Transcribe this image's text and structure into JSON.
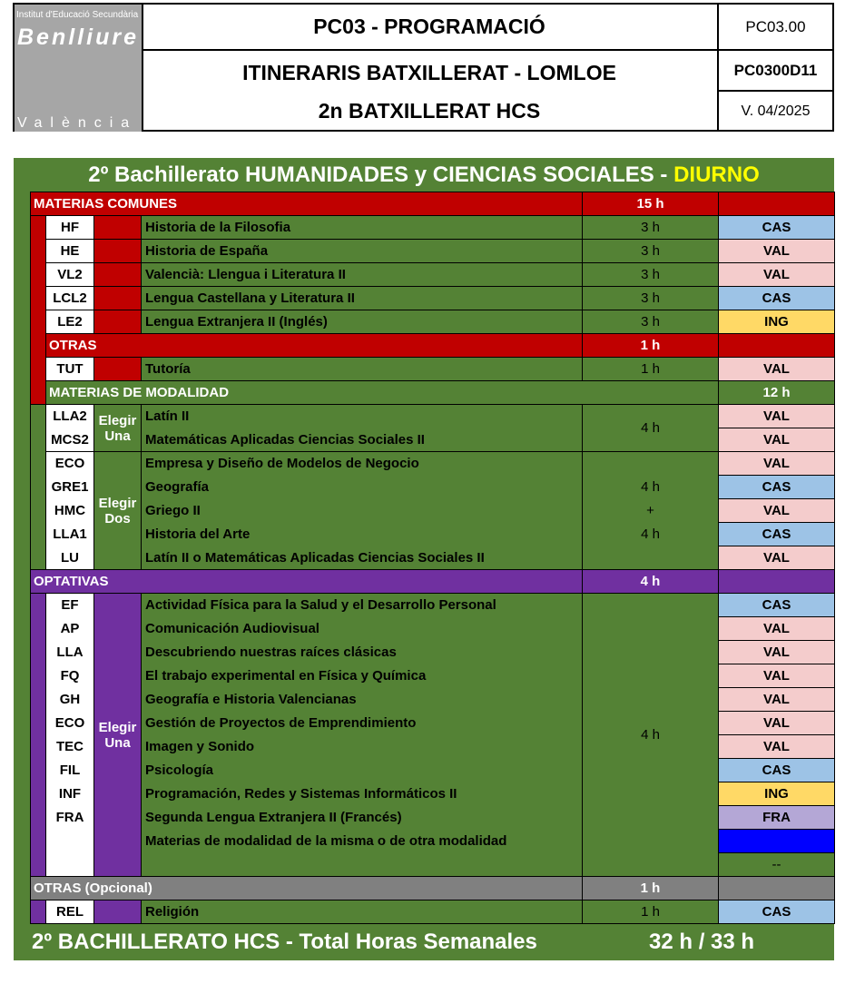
{
  "header": {
    "logo": {
      "line1": "Institut d'Educació Secundària",
      "line2": "Benlliure",
      "line3": "València"
    },
    "code": "PC03 - PROGRAMACIÓ",
    "title1": "ITINERARIS BATXILLERAT - LOMLOE",
    "title2": "2n BATXILLERAT HCS",
    "ref": "PC03.00",
    "doc": "PC0300D11",
    "version": "V. 04/2025"
  },
  "title": {
    "main": "2º Bachillerato HUMANIDADES y CIENCIAS SOCIALES  - ",
    "shift": "DIURNO"
  },
  "colors": {
    "comunes": "#C00000",
    "modalidad": "#548235",
    "optativas": "#7030A0",
    "opcional": "#808080",
    "CAS": "#9DC3E6",
    "VAL": "#F4CCCC",
    "ING": "#FFD966",
    "FRA": "#B4A7D6",
    "blue": "#0000FF"
  },
  "comunes": {
    "label": "MATERIAS COMUNES",
    "hours": "15 h",
    "rows": [
      {
        "code": "HF",
        "name": "Historia de la Filosofia",
        "hours": "3 h",
        "lang": "CAS"
      },
      {
        "code": "HE",
        "name": "Historia de España",
        "hours": "3 h",
        "lang": "VAL"
      },
      {
        "code": "VL2",
        "name": "Valencià: Llengua i Literatura II",
        "hours": "3 h",
        "lang": "VAL"
      },
      {
        "code": "LCL2",
        "name": "Lengua Castellana y Literatura II",
        "hours": "3 h",
        "lang": "CAS"
      },
      {
        "code": "LE2",
        "name": "Lengua Extranjera II (Inglés)",
        "hours": "3 h",
        "lang": "ING"
      }
    ]
  },
  "otras": {
    "label": "OTRAS",
    "hours": "1 h",
    "rows": [
      {
        "code": "TUT",
        "name": "Tutoría",
        "hours": "1 h",
        "lang": "VAL"
      }
    ]
  },
  "modalidad": {
    "label": "MATERIAS DE MODALIDAD",
    "hours": "12 h",
    "groups": [
      {
        "choose": [
          "Elegir",
          "Una"
        ],
        "hours": [
          "4 h"
        ],
        "rows": [
          {
            "code": "LLA2",
            "name": "Latín II",
            "lang": "VAL"
          },
          {
            "code": "MCS2",
            "name": "Matemáticas Aplicadas Ciencias Sociales II",
            "lang": "VAL"
          }
        ]
      },
      {
        "choose": [
          "Elegir",
          "Dos"
        ],
        "hours": [
          "4 h",
          "+",
          "4 h"
        ],
        "rows": [
          {
            "code": "ECO",
            "name": "Empresa y Diseño de Modelos de Negocio",
            "lang": "VAL"
          },
          {
            "code": "GRE1",
            "name": "Geografía",
            "lang": "CAS"
          },
          {
            "code": "HMC",
            "name": "Griego II",
            "lang": "VAL"
          },
          {
            "code": "LLA1",
            "name": "Historia del Arte",
            "lang": "CAS"
          },
          {
            "code": "LU",
            "name": "Latín II o Matemáticas Aplicadas Ciencias Sociales II",
            "lang": "VAL"
          }
        ]
      }
    ]
  },
  "optativas": {
    "label": "OPTATIVAS",
    "hours": "4 h",
    "choose": [
      "Elegir",
      "Una"
    ],
    "subject_hours": "4 h",
    "rows": [
      {
        "code": "EF",
        "name": "Actividad Física para la Salud y el Desarrollo Personal",
        "lang": "CAS"
      },
      {
        "code": "AP",
        "name": "Comunicación Audiovisual",
        "lang": "VAL"
      },
      {
        "code": "LLA",
        "name": "Descubriendo nuestras raíces clásicas",
        "lang": "VAL"
      },
      {
        "code": "FQ",
        "name": "El trabajo experimental en Física y Química",
        "lang": "VAL"
      },
      {
        "code": "GH",
        "name": "Geografía e Historia Valencianas",
        "lang": "VAL"
      },
      {
        "code": "ECO",
        "name": "Gestión de Proyectos de Emprendimiento",
        "lang": "VAL"
      },
      {
        "code": "TEC",
        "name": "Imagen y Sonido",
        "lang": "VAL"
      },
      {
        "code": "FIL",
        "name": "Psicología",
        "lang": "CAS"
      },
      {
        "code": "INF",
        "name": "Programación, Redes y Sistemas Informáticos II",
        "lang": "ING"
      },
      {
        "code": "FRA",
        "name": "Segunda Lengua Extranjera II (Francés)",
        "lang": "FRA"
      }
    ],
    "extra": {
      "name": "Materias de modalidad de la misma o de otra modalidad",
      "lang_fill": "blue",
      "lang2": "--"
    }
  },
  "opcional": {
    "label": "OTRAS (Opcional)",
    "hours": "1 h",
    "rows": [
      {
        "code": "REL",
        "name": "Religión",
        "hours": "1 h",
        "lang": "CAS"
      }
    ]
  },
  "total": {
    "label": "2º BACHILLERATO HCS - Total Horas Semanales",
    "hours": "32 h / 33 h"
  }
}
